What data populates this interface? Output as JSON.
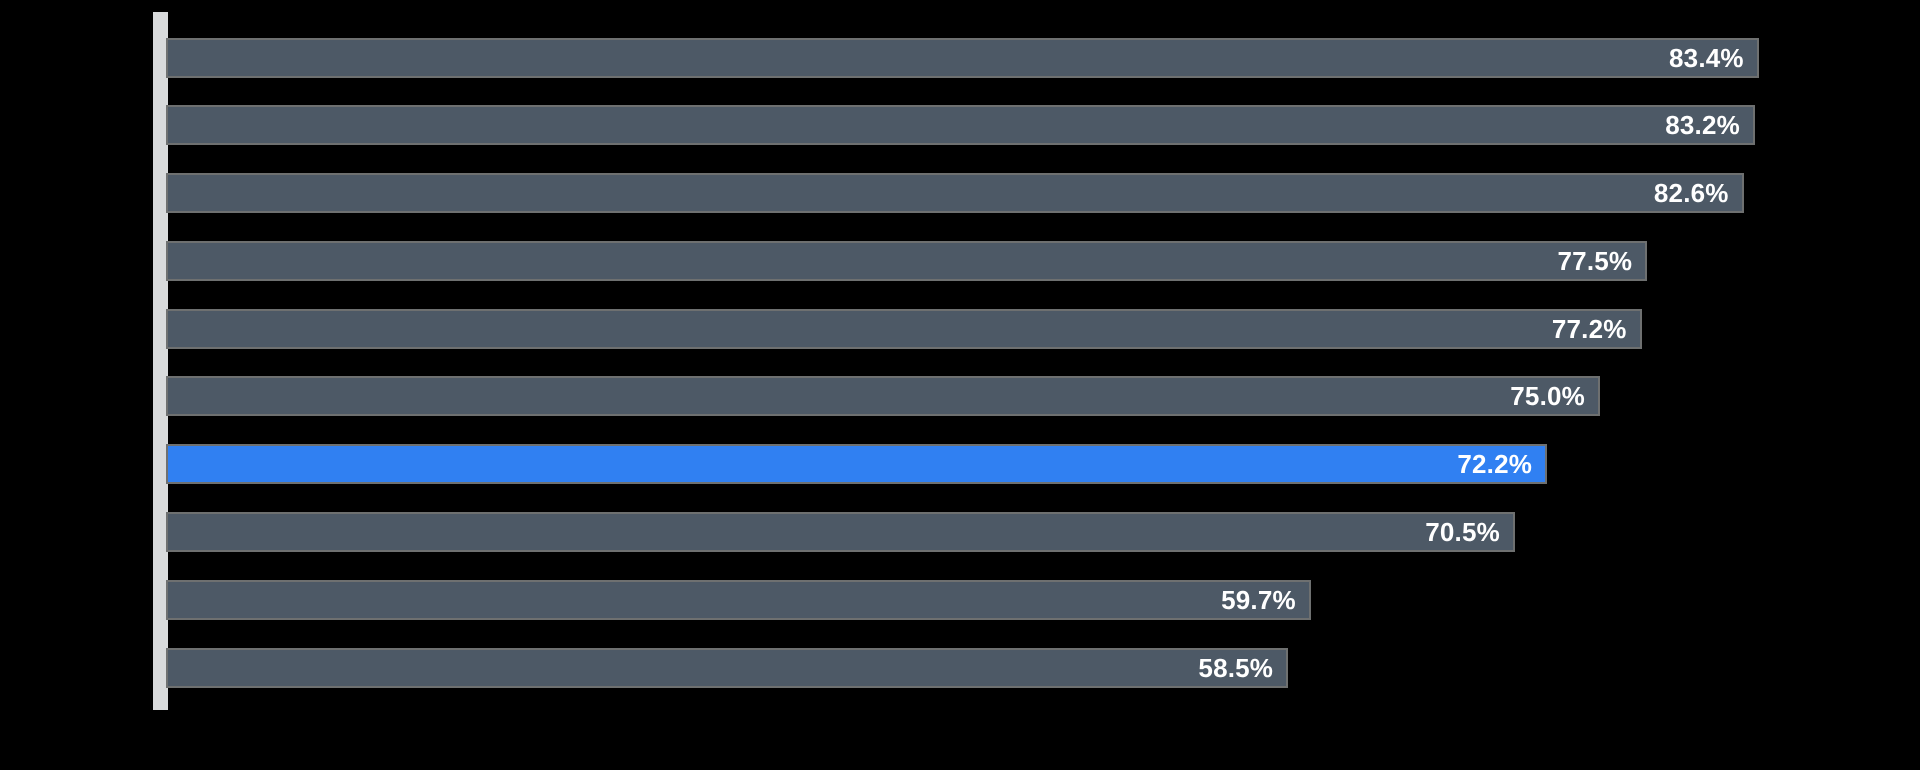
{
  "chart_data": {
    "type": "bar",
    "orientation": "horizontal",
    "title": "",
    "xlabel": "",
    "ylabel": "",
    "xlim": [
      0,
      100
    ],
    "grid": false,
    "legend": false,
    "categories": [
      "",
      "",
      "",
      "",
      "",
      "",
      "",
      "",
      "",
      ""
    ],
    "values": [
      83.4,
      83.2,
      82.6,
      77.5,
      77.2,
      75.0,
      72.2,
      70.5,
      59.7,
      58.5
    ],
    "labels": [
      "83.4%",
      "83.2%",
      "82.6%",
      "77.5%",
      "77.2%",
      "75.0%",
      "72.2%",
      "70.5%",
      "59.7%",
      "58.5%"
    ],
    "highlight_index": 6,
    "colors": {
      "background": "#000000",
      "bar_fill": "#4d5966",
      "highlight_fill": "#3080f2",
      "bar_outline": "#6e7070",
      "label_text": "#ffffff",
      "axis_baseline": "#d8dadb"
    }
  }
}
